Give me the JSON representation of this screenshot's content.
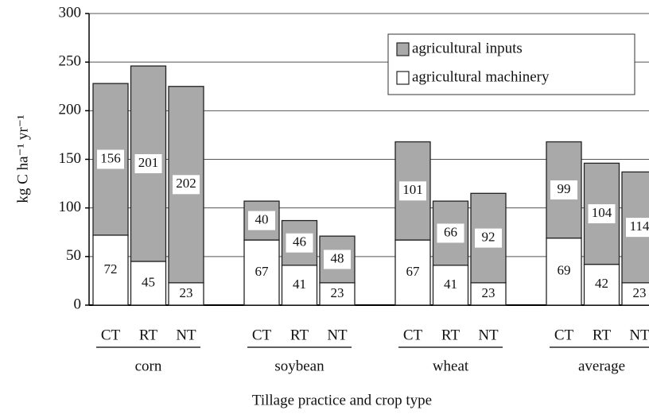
{
  "chart_data": {
    "type": "stacked_bar",
    "y_label": "kg C ha⁻¹ yr⁻¹",
    "x_label": "Tillage practice and crop type",
    "categories": [
      "CT",
      "RT",
      "NT",
      "CT",
      "RT",
      "NT",
      "CT",
      "RT",
      "NT",
      "CT",
      "RT",
      "NT"
    ],
    "groups": [
      "corn",
      "soybean",
      "wheat",
      "average"
    ],
    "series": [
      {
        "name": "agricultural machinery",
        "color": "#ffffff",
        "values": [
          72,
          45,
          23,
          67,
          41,
          23,
          67,
          41,
          23,
          69,
          42,
          23
        ]
      },
      {
        "name": "agricultural inputs",
        "color": "#a9a9a9",
        "values": [
          156,
          201,
          202,
          40,
          46,
          48,
          101,
          66,
          92,
          99,
          104,
          114
        ]
      }
    ],
    "ylim": [
      0,
      300
    ],
    "yticks": [
      0,
      50,
      100,
      150,
      200,
      250,
      300
    ],
    "grid": true,
    "legend": "upper right"
  }
}
